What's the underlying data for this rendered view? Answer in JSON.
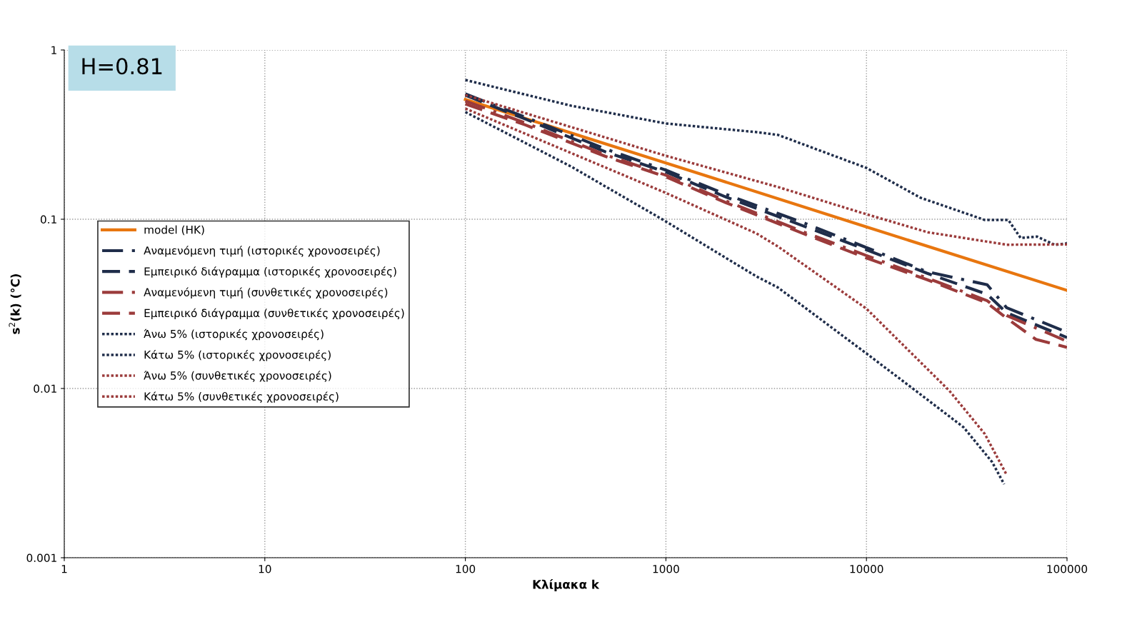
{
  "chart_data": {
    "type": "line",
    "xlabel": "Κλίμακα k",
    "ylabel": "s$^{2}$(k) (°C)",
    "log": "xy",
    "xlim": [
      1,
      100000
    ],
    "xticks": [
      1,
      10,
      100,
      1000,
      10000,
      100000
    ],
    "ylim": [
      0.001,
      1
    ],
    "yticks": [
      0.001,
      0.01,
      0.1,
      1
    ],
    "grid": true,
    "legend": "left",
    "marker": "none",
    "annotations": [
      "H=0.81"
    ],
    "series": [
      {
        "name": "model (HK)",
        "color": "#e8760f",
        "line_style": "solid",
        "x": [
          100,
          1000,
          10000,
          100000
        ],
        "values": [
          0.51,
          0.215,
          0.09,
          0.038
        ]
      },
      {
        "name": "Αναμενόμενη τιμή (ιστορικές χρονοσειρές)",
        "color": "#1f2d4a",
        "line_style": "dashdot",
        "x": [
          100,
          200,
          500,
          1000,
          2000,
          5000,
          10000,
          20000,
          40000,
          50000,
          100000
        ],
        "values": [
          0.55,
          0.4,
          0.26,
          0.195,
          0.14,
          0.094,
          0.068,
          0.049,
          0.041,
          0.03,
          0.0215
        ]
      },
      {
        "name": "Εμπειρικό διάγραμμα (ιστορικές χρονοσειρές)",
        "color": "#1f2d4a",
        "line_style": "dashed",
        "x": [
          100,
          200,
          500,
          1000,
          2000,
          5000,
          10000,
          20000,
          40000,
          50000,
          100000
        ],
        "values": [
          0.54,
          0.39,
          0.25,
          0.19,
          0.135,
          0.09,
          0.066,
          0.048,
          0.036,
          0.028,
          0.02
        ]
      },
      {
        "name": "Αναμενόμενη τιμή (συνθετικές χρονοσειρές)",
        "color": "#9b3b3b",
        "line_style": "dashdot",
        "x": [
          100,
          200,
          500,
          1000,
          2000,
          5000,
          10000,
          20000,
          40000,
          50000,
          100000
        ],
        "values": [
          0.5,
          0.37,
          0.24,
          0.182,
          0.128,
          0.083,
          0.061,
          0.045,
          0.033,
          0.027,
          0.019
        ]
      },
      {
        "name": "Εμπειρικό διάγραμμα (συνθετικές χρονοσειρές)",
        "color": "#9b3b3b",
        "line_style": "dashed",
        "x": [
          100,
          200,
          500,
          1000,
          2000,
          5000,
          10000,
          20000,
          40000,
          50000,
          70000,
          100000
        ],
        "values": [
          0.48,
          0.36,
          0.235,
          0.178,
          0.125,
          0.081,
          0.059,
          0.044,
          0.032,
          0.026,
          0.0195,
          0.0175
        ]
      },
      {
        "name": "Άνω 5% (ιστορικές χρονοσειρές)",
        "color": "#1f2d4a",
        "line_style": "dotted",
        "x": [
          100,
          336,
          1000,
          2830,
          3620,
          10000,
          18600,
          38900,
          51000,
          58700,
          70900,
          87000,
          100000
        ],
        "values": [
          0.665,
          0.469,
          0.368,
          0.327,
          0.315,
          0.201,
          0.134,
          0.099,
          0.099,
          0.0775,
          0.079,
          0.0705,
          0.072
        ]
      },
      {
        "name": "Κάτω 5% (ιστορικές χρονοσειρές)",
        "color": "#1f2d4a",
        "line_style": "dotted",
        "x": [
          100,
          336,
          1000,
          2830,
          3620,
          10000,
          17600,
          30500,
          42300,
          48600
        ],
        "values": [
          0.43,
          0.205,
          0.097,
          0.0459,
          0.0395,
          0.0161,
          0.0097,
          0.0059,
          0.00368,
          0.00272
        ]
      },
      {
        "name": "Άνω 5% (συνθετικές χρονοσειρές)",
        "color": "#9b3b3b",
        "line_style": "dotted",
        "x": [
          100,
          1000,
          3620,
          10000,
          20200,
          50000,
          100000
        ],
        "values": [
          0.542,
          0.237,
          0.155,
          0.107,
          0.0838,
          0.0707,
          0.071
        ]
      },
      {
        "name": "Κάτω 5% (συνθετικές χρονοσειρές)",
        "color": "#9b3b3b",
        "line_style": "dotted",
        "x": [
          100,
          1000,
          2830,
          3620,
          10000,
          25900,
          38900,
          50000
        ],
        "values": [
          0.451,
          0.143,
          0.0824,
          0.069,
          0.0296,
          0.0097,
          0.00539,
          0.00309
        ]
      }
    ]
  }
}
